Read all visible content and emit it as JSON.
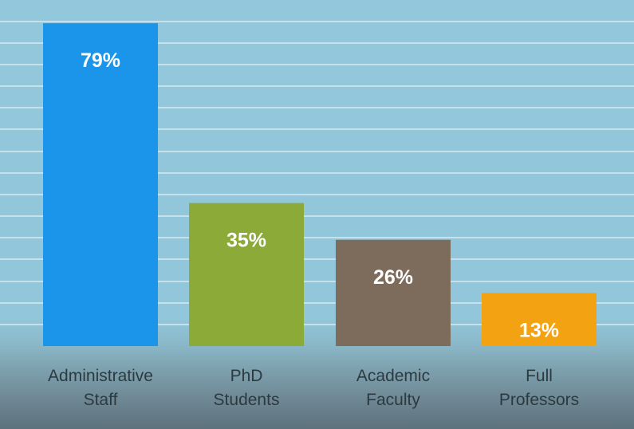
{
  "chart_data": {
    "type": "bar",
    "categories": [
      [
        "Administrative",
        "Staff"
      ],
      [
        "PhD",
        "Students"
      ],
      [
        "Academic",
        "Faculty"
      ],
      [
        "Full",
        "Professors"
      ]
    ],
    "values": [
      79,
      35,
      26,
      13
    ],
    "value_labels": [
      "79%",
      "35%",
      "26%",
      "13%"
    ],
    "ylim": [
      0,
      80
    ],
    "grid": true,
    "colors": {
      "bars": [
        "#1b95ea",
        "#8caa38",
        "#7d6b5b",
        "#f3a312"
      ],
      "gridline": "#c6e1ec",
      "value_label": "#ffffff",
      "category_label": "#2c3a40"
    }
  }
}
